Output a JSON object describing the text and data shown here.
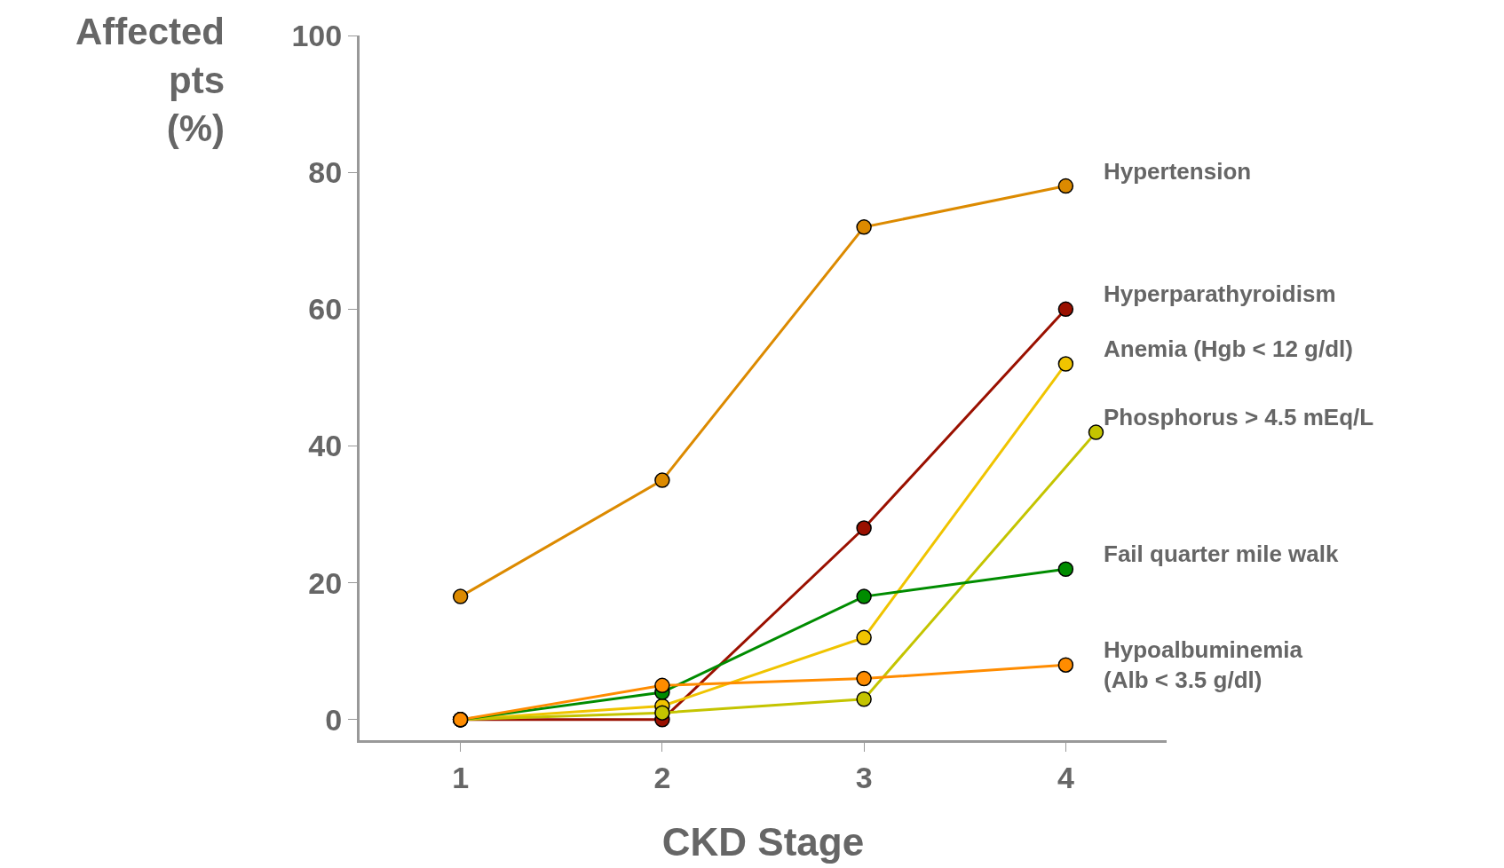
{
  "chart_data": {
    "type": "line",
    "xlabel": "CKD Stage",
    "ylabel": "Affected\npts\n(%)",
    "x": [
      1,
      2,
      3,
      4
    ],
    "xlim": [
      0.5,
      4.5
    ],
    "xticks": [
      1,
      2,
      3,
      4
    ],
    "ylim": [
      -3,
      100
    ],
    "yticks": [
      0,
      20,
      40,
      60,
      80,
      100
    ],
    "grid": false,
    "legend": false,
    "marker": "circle",
    "line_style": "solid",
    "series": [
      {
        "name": "Hypertension",
        "color": "#dc8a00",
        "values": [
          18,
          35,
          72,
          78
        ]
      },
      {
        "name": "Hyperparathyroidism",
        "color": "#9a1000",
        "values": [
          0,
          0,
          28,
          60
        ]
      },
      {
        "name": "Anemia (Hgb < 12 g/dl)",
        "color": "#f0c400",
        "values": [
          0,
          2,
          12,
          52
        ]
      },
      {
        "name": "Phosphorus > 4.5 mEq/L",
        "color": "#c4c400",
        "x": [
          1,
          2,
          3,
          4.15
        ],
        "values": [
          0,
          1,
          3,
          42
        ]
      },
      {
        "name": "Fail quarter mile walk",
        "color": "#008c00",
        "values": [
          0,
          4,
          18,
          22
        ]
      },
      {
        "name": "Hypoalbuminemia\n(Alb < 3.5 g/dl)",
        "color": "#ff8c00",
        "values": [
          0,
          5,
          6,
          8
        ]
      }
    ]
  }
}
